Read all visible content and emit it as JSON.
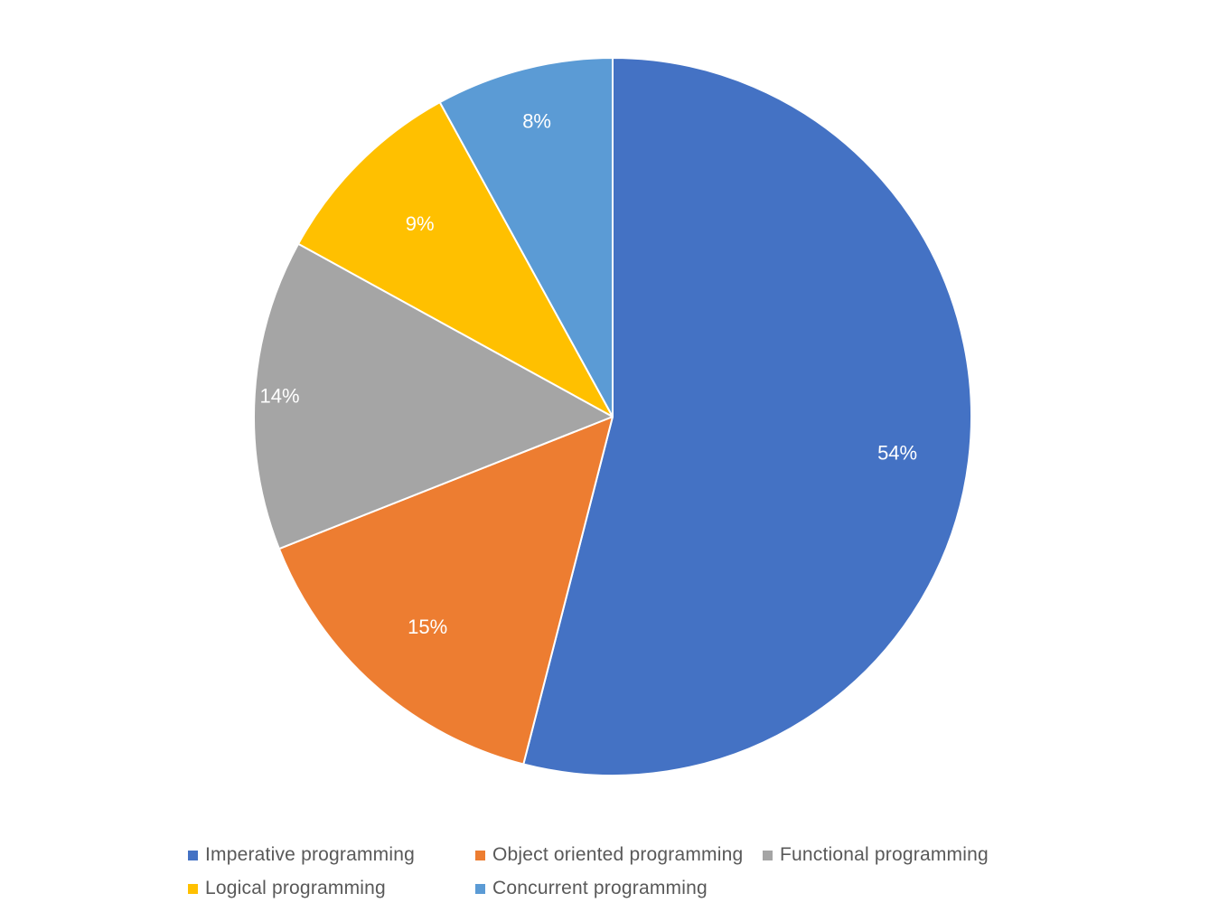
{
  "chart_data": {
    "type": "pie",
    "start_angle_deg": 0,
    "direction": "clockwise",
    "legend_position": "bottom",
    "slices": [
      {
        "name": "Imperative programming",
        "value": 54,
        "label": "54%",
        "color": "#4472C4"
      },
      {
        "name": "Object oriented programming",
        "value": 15,
        "label": "15%",
        "color": "#ED7D31"
      },
      {
        "name": "Functional programming",
        "value": 14,
        "label": "14%",
        "color": "#A5A5A5"
      },
      {
        "name": "Logical programming",
        "value": 9,
        "label": "9%",
        "color": "#FFC000"
      },
      {
        "name": "Concurrent programming",
        "value": 8,
        "label": "8%",
        "color": "#5B9BD5"
      }
    ]
  },
  "legend": {
    "items": [
      {
        "label": "Imperative programming",
        "color": "#4472C4"
      },
      {
        "label": "Object oriented programming",
        "color": "#ED7D31"
      },
      {
        "label": "Functional programming",
        "color": "#A5A5A5"
      },
      {
        "label": "Logical programming",
        "color": "#FFC000"
      },
      {
        "label": "Concurrent programming",
        "color": "#5B9BD5"
      }
    ]
  }
}
